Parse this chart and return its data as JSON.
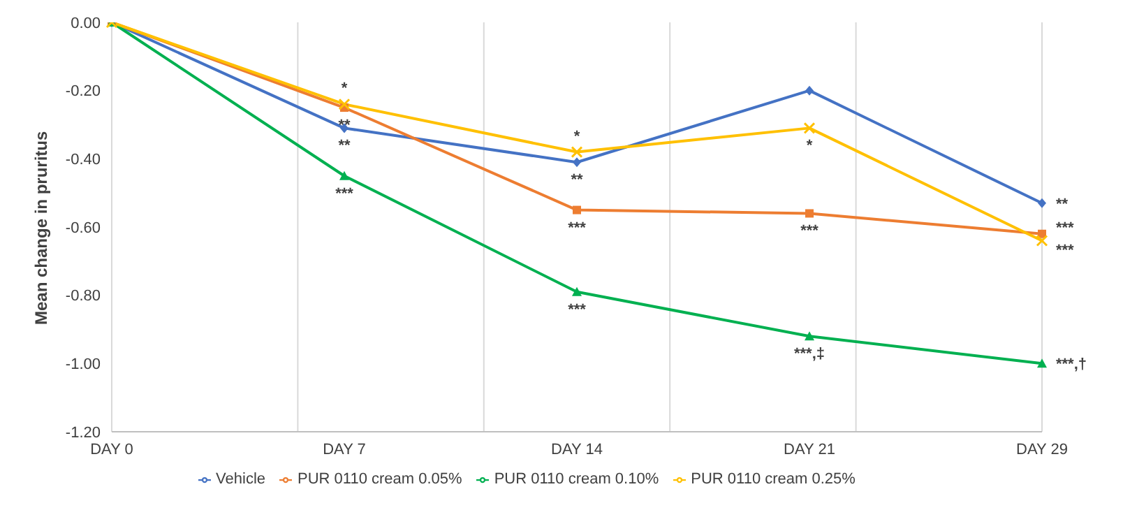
{
  "chart_data": {
    "type": "line",
    "ylabel": "Mean change in pruritus",
    "categories": [
      "DAY 0",
      "DAY 7",
      "DAY 14",
      "DAY 21",
      "DAY 29"
    ],
    "series": [
      {
        "name": "Vehicle",
        "color": "#4472c4",
        "marker": "diamond",
        "values": [
          0,
          -0.31,
          -0.41,
          -0.2,
          -0.53
        ]
      },
      {
        "name": "PUR 0110 cream 0.05%",
        "color": "#ed7d31",
        "marker": "square",
        "values": [
          0,
          -0.25,
          -0.55,
          -0.56,
          -0.62
        ]
      },
      {
        "name": "PUR 0110 cream 0.10%",
        "color": "#00b050",
        "marker": "triangle",
        "values": [
          0,
          -0.45,
          -0.79,
          -0.92,
          -1.0
        ]
      },
      {
        "name": "PUR 0110 cream 0.25%",
        "color": "#ffc000",
        "marker": "cross",
        "values": [
          0,
          -0.24,
          -0.38,
          -0.31,
          -0.64
        ]
      }
    ],
    "ylim": [
      -1.2,
      0
    ],
    "yticks": [
      {
        "value": -1.2,
        "label": "-1.20"
      },
      {
        "value": -1.0,
        "label": "-1.00"
      },
      {
        "value": -0.8,
        "label": "-0.80"
      },
      {
        "value": -0.6,
        "label": "-0.60"
      },
      {
        "value": -0.4,
        "label": "-0.40"
      },
      {
        "value": -0.2,
        "label": "-0.20"
      },
      {
        "value": 0,
        "label": "0.00"
      }
    ],
    "grid": "x",
    "legend": "bottom",
    "line_style": "solid",
    "annotations": [
      {
        "text": "*",
        "x": "DAY 7",
        "y": -0.24
      },
      {
        "text": "**",
        "x": "DAY 7",
        "y": -0.25
      },
      {
        "text": "**",
        "x": "DAY 7",
        "y": -0.31
      },
      {
        "text": "***",
        "x": "DAY 7",
        "y": -0.45
      },
      {
        "text": "*",
        "x": "DAY 14",
        "y": -0.38
      },
      {
        "text": "**",
        "x": "DAY 14",
        "y": -0.41
      },
      {
        "text": "***",
        "x": "DAY 14",
        "y": -0.55
      },
      {
        "text": "***",
        "x": "DAY 14",
        "y": -0.79
      },
      {
        "text": "*",
        "x": "DAY 21",
        "y": -0.31
      },
      {
        "text": "***",
        "x": "DAY 21",
        "y": -0.56
      },
      {
        "text": "***,‡",
        "x": "DAY 21",
        "y": -0.92
      },
      {
        "text": "**",
        "x": "DAY 29",
        "y": -0.53
      },
      {
        "text": "***",
        "x": "DAY 29",
        "y": -0.62
      },
      {
        "text": "***",
        "x": "DAY 29",
        "y": -0.64
      },
      {
        "text": "***,†",
        "x": "DAY 29",
        "y": -1.0
      }
    ]
  }
}
